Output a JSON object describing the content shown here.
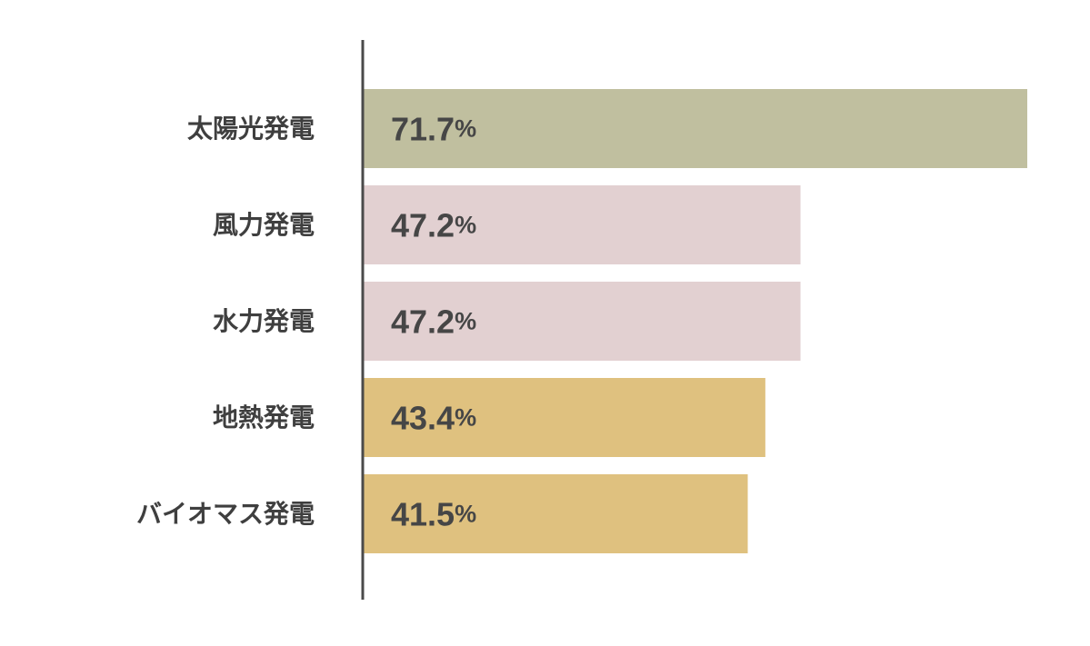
{
  "chart_data": {
    "type": "bar",
    "orientation": "horizontal",
    "categories": [
      "太陽光発電",
      "風力発電",
      "水力発電",
      "地熱発電",
      "バイオマス発電"
    ],
    "values": [
      71.7,
      47.2,
      47.2,
      43.4,
      41.5
    ],
    "value_labels": [
      "71.7",
      "47.2",
      "47.2",
      "43.4",
      "41.5"
    ],
    "value_unit": "%",
    "bar_colors": [
      "#c0bf9f",
      "#e2d0d1",
      "#e2d0d1",
      "#dfc17f",
      "#dfc17f"
    ],
    "axis_color": "#4a4a4a",
    "label_color": "#3f3f3f",
    "xlim": [
      0,
      71.7
    ],
    "grid": false,
    "legend": "none",
    "title": "",
    "xlabel": "",
    "ylabel": ""
  }
}
